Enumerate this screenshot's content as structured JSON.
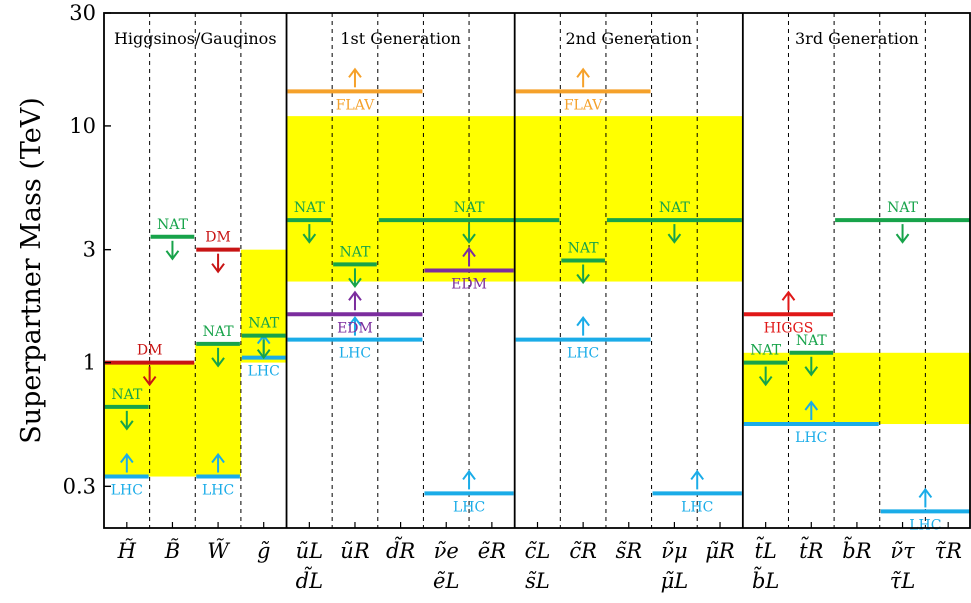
{
  "chart_data": {
    "type": "bar",
    "ylabel": "Superpartner Mass (TeV)",
    "yscale": "log",
    "ylim": [
      0.2,
      30
    ],
    "yticks": [
      "0.3",
      "1",
      "3",
      "10",
      "30"
    ],
    "ytick_values": [
      0.3,
      1,
      3,
      10,
      30
    ],
    "grid": false,
    "sections": [
      "Higgsinos/Gauginos",
      "1st Generation",
      "2nd Generation",
      "3rd Generation"
    ],
    "categories": [
      {
        "line1": "H̃",
        "line2": ""
      },
      {
        "line1": "B̃",
        "line2": ""
      },
      {
        "line1": "W̃",
        "line2": ""
      },
      {
        "line1": "g̃",
        "line2": ""
      },
      {
        "line1": "ũL",
        "line2": "d̃L"
      },
      {
        "line1": "ũR",
        "line2": ""
      },
      {
        "line1": "d̃R",
        "line2": ""
      },
      {
        "line1": "ν̃e",
        "line2": "ẽL"
      },
      {
        "line1": "ẽR",
        "line2": ""
      },
      {
        "line1": "c̃L",
        "line2": "s̃L"
      },
      {
        "line1": "c̃R",
        "line2": ""
      },
      {
        "line1": "s̃R",
        "line2": ""
      },
      {
        "line1": "ν̃μ",
        "line2": "μ̃L"
      },
      {
        "line1": "μ̃R",
        "line2": ""
      },
      {
        "line1": "t̃L",
        "line2": "b̃L"
      },
      {
        "line1": "t̃R",
        "line2": ""
      },
      {
        "line1": "b̃R",
        "line2": ""
      },
      {
        "line1": "ν̃τ",
        "line2": "τ̃L"
      },
      {
        "line1": "τ̃R",
        "line2": ""
      }
    ],
    "allowed_regions": [
      {
        "from": 0,
        "to": 2,
        "low": 0.33,
        "high": 1.0
      },
      {
        "from": 2,
        "to": 3,
        "low": 0.33,
        "high": 1.2
      },
      {
        "from": 3,
        "to": 4,
        "low": 1.0,
        "high": 3.0
      },
      {
        "from": 4,
        "to": 9,
        "low": 2.2,
        "high": 11
      },
      {
        "from": 9,
        "to": 14,
        "low": 2.2,
        "high": 11
      },
      {
        "from": 14,
        "to": 19,
        "low": 0.55,
        "high": 1.1
      }
    ],
    "constraints": [
      {
        "label": "LHC",
        "from": 0,
        "to": 1,
        "value": 0.33,
        "color": "#1aace8",
        "dir": "up"
      },
      {
        "label": "NAT",
        "from": 0,
        "to": 1,
        "value": 0.65,
        "color": "#17a34a",
        "dir": "down"
      },
      {
        "label": "DM",
        "from": 0,
        "to": 2,
        "value": 1.0,
        "color": "#c81414",
        "dir": "down"
      },
      {
        "label": "NAT",
        "from": 1,
        "to": 2,
        "value": 3.4,
        "color": "#17a34a",
        "dir": "down"
      },
      {
        "label": "LHC",
        "from": 2,
        "to": 3,
        "value": 0.33,
        "color": "#1aace8",
        "dir": "up"
      },
      {
        "label": "NAT",
        "from": 2,
        "to": 3,
        "value": 1.2,
        "color": "#17a34a",
        "dir": "down"
      },
      {
        "label": "DM",
        "from": 2,
        "to": 3,
        "value": 3.0,
        "color": "#c81414",
        "dir": "down"
      },
      {
        "label": "LHC",
        "from": 3,
        "to": 4,
        "value": 1.05,
        "color": "#1aace8",
        "dir": "up"
      },
      {
        "label": "NAT",
        "from": 3,
        "to": 4,
        "value": 1.3,
        "color": "#17a34a",
        "dir": "down"
      },
      {
        "label": "LHC",
        "from": 4,
        "to": 7,
        "value": 1.25,
        "color": "#1aace8",
        "dir": "up"
      },
      {
        "label": "EDM",
        "from": 4,
        "to": 7,
        "value": 1.6,
        "color": "#7b2d9e",
        "dir": "up"
      },
      {
        "label": "NAT",
        "from": 4,
        "to": 5,
        "value": 4.0,
        "color": "#17a34a",
        "dir": "down"
      },
      {
        "label": "FLAV",
        "from": 4,
        "to": 7,
        "value": 14,
        "color": "#f5a12a",
        "dir": "up"
      },
      {
        "label": "NAT",
        "from": 5,
        "to": 6,
        "value": 2.6,
        "color": "#17a34a",
        "dir": "down"
      },
      {
        "label": "NAT",
        "from": 6,
        "to": 10,
        "value": 4.0,
        "color": "#17a34a",
        "dir": "down"
      },
      {
        "label": "EDM",
        "from": 7,
        "to": 9,
        "value": 2.45,
        "color": "#7b2d9e",
        "dir": "up"
      },
      {
        "label": "LHC",
        "from": 7,
        "to": 9,
        "value": 0.28,
        "color": "#1aace8",
        "dir": "up"
      },
      {
        "label": "LHC",
        "from": 9,
        "to": 12,
        "value": 1.25,
        "color": "#1aace8",
        "dir": "up"
      },
      {
        "label": "NAT",
        "from": 10,
        "to": 11,
        "value": 2.7,
        "color": "#17a34a",
        "dir": "down"
      },
      {
        "label": "FLAV",
        "from": 9,
        "to": 12,
        "value": 14,
        "color": "#f5a12a",
        "dir": "up"
      },
      {
        "label": "NAT",
        "from": 11,
        "to": 14,
        "value": 4.0,
        "color": "#17a34a",
        "dir": "down"
      },
      {
        "label": "LHC",
        "from": 12,
        "to": 14,
        "value": 0.28,
        "color": "#1aace8",
        "dir": "up"
      },
      {
        "label": "HIGGS",
        "from": 14,
        "to": 16,
        "value": 1.6,
        "color": "#e01818",
        "dir": "up"
      },
      {
        "label": "NAT",
        "from": 14,
        "to": 15,
        "value": 1.0,
        "color": "#17a34a",
        "dir": "down"
      },
      {
        "label": "NAT",
        "from": 15,
        "to": 16,
        "value": 1.1,
        "color": "#17a34a",
        "dir": "down"
      },
      {
        "label": "LHC",
        "from": 14,
        "to": 17,
        "value": 0.55,
        "color": "#1aace8",
        "dir": "up"
      },
      {
        "label": "NAT",
        "from": 16,
        "to": 19,
        "value": 4.0,
        "color": "#17a34a",
        "dir": "down"
      },
      {
        "label": "LHC",
        "from": 17,
        "to": 19,
        "value": 0.235,
        "color": "#1aace8",
        "dir": "up"
      }
    ]
  },
  "colors": {
    "allowed_region": "#ffff00",
    "frame": "#000000"
  }
}
